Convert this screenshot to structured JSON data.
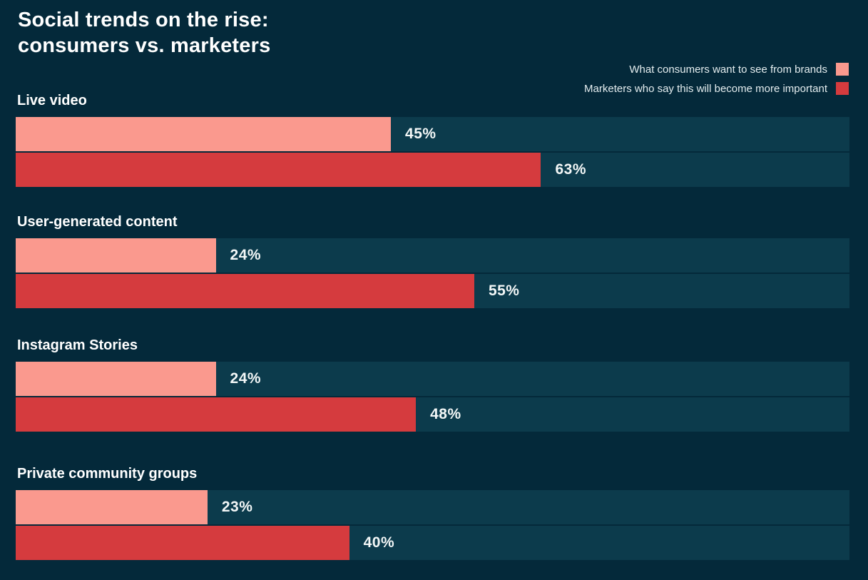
{
  "title": {
    "line1": "Social trends on the rise:",
    "line2": "consumers vs. marketers"
  },
  "legend": {
    "items": [
      {
        "label": "What consumers want to see from brands",
        "color": "#fa998e"
      },
      {
        "label": "Marketers who say this will become more important",
        "color": "#d53b3e"
      }
    ]
  },
  "colors": {
    "background": "#04293a",
    "track": "#0c3b4c",
    "consumer": "#fa998e",
    "marketer": "#d53b3e",
    "heading_text": "#ffffff",
    "value_text": "#f3f7f7",
    "legend_text": "#e4edef"
  },
  "chart_data": {
    "type": "bar",
    "orientation": "horizontal",
    "title": "Social trends on the rise: consumers vs. marketers",
    "categories": [
      "Live video",
      "User-generated content",
      "Instagram Stories",
      "Private community groups"
    ],
    "series": [
      {
        "name": "What consumers want to see from brands",
        "color": "#fa998e",
        "values": [
          45,
          24,
          24,
          23
        ]
      },
      {
        "name": "Marketers who say this will become more important",
        "color": "#d53b3e",
        "values": [
          63,
          55,
          48,
          40
        ]
      }
    ],
    "value_suffix": "%",
    "xlim": [
      0,
      100
    ],
    "grid": false,
    "legend_position": "top-right",
    "value_labels": "outside-end"
  }
}
